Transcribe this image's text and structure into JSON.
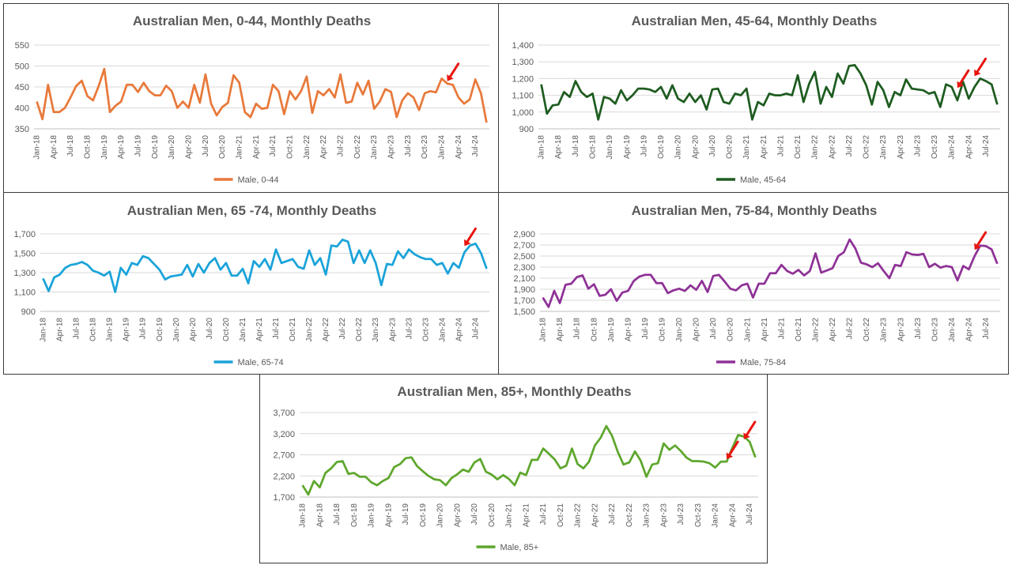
{
  "colors": {
    "arrow": "#e8150f",
    "text": "#595959",
    "grid": "#d9d9d9"
  },
  "chart_data": [
    {
      "type": "line",
      "title": "Australian Men, 0-44, Monthly Deaths",
      "legend": "bottom",
      "grid": true,
      "color": "#e8793b",
      "yticks": [
        350,
        400,
        450,
        500,
        550
      ],
      "ylim": [
        350,
        550
      ],
      "x_tick_labels": [
        "Jan-18",
        "Apr-18",
        "Jul-18",
        "Oct-18",
        "Jan-19",
        "Apr-19",
        "Jul-19",
        "Oct-19",
        "Jan-20",
        "Apr-20",
        "Jul-20",
        "Oct-20",
        "Jan-21",
        "Apr-21",
        "Jul-21",
        "Oct-21",
        "Jan-22",
        "Apr-22",
        "Jul-22",
        "Oct-22",
        "Jan-23",
        "Apr-23",
        "Jul-23",
        "Oct-23",
        "Jan-24",
        "Apr-24",
        "Jul-24"
      ],
      "series": [
        {
          "name": "Male, 0-44",
          "start": "Jan-18",
          "values": [
            415,
            373,
            455,
            390,
            390,
            400,
            425,
            452,
            465,
            428,
            418,
            452,
            493,
            390,
            405,
            415,
            455,
            455,
            438,
            460,
            440,
            430,
            430,
            453,
            440,
            400,
            415,
            400,
            455,
            412,
            480,
            410,
            382,
            402,
            412,
            478,
            460,
            390,
            378,
            410,
            398,
            400,
            455,
            440,
            385,
            440,
            420,
            440,
            475,
            388,
            440,
            430,
            445,
            425,
            480,
            412,
            415,
            460,
            432,
            465,
            398,
            415,
            445,
            438,
            378,
            418,
            435,
            425,
            395,
            435,
            440,
            437,
            470,
            458,
            455,
            425,
            410,
            420,
            468,
            435,
            365
          ]
        }
      ],
      "arrows": [
        {
          "x": "Feb-24",
          "y": 458
        }
      ]
    },
    {
      "type": "line",
      "title": "Australian Men, 45-64, Monthly Deaths",
      "legend": "bottom",
      "grid": true,
      "color": "#1e5c20",
      "yticks": [
        900,
        1000,
        1100,
        1200,
        1300,
        1400
      ],
      "ytick_labels": [
        "900",
        "1,000",
        "1,100",
        "1,200",
        "1,300",
        "1,400"
      ],
      "ylim": [
        900,
        1400
      ],
      "x_tick_labels": [
        "Jan-18",
        "Apr-18",
        "Jul-18",
        "Oct-18",
        "Jan-19",
        "Apr-19",
        "Jul-19",
        "Oct-19",
        "Jan-20",
        "Apr-20",
        "Jul-20",
        "Oct-20",
        "Jan-21",
        "Apr-21",
        "Jul-21",
        "Oct-21",
        "Jan-22",
        "Apr-22",
        "Jul-22",
        "Oct-22",
        "Jan-23",
        "Apr-23",
        "Jul-23",
        "Oct-23",
        "Jan-24",
        "Apr-24",
        "Jul-24"
      ],
      "series": [
        {
          "name": "Male, 45-64",
          "start": "Jan-18",
          "values": [
            1165,
            990,
            1040,
            1045,
            1120,
            1090,
            1185,
            1120,
            1090,
            1110,
            955,
            1090,
            1080,
            1050,
            1130,
            1070,
            1100,
            1140,
            1140,
            1135,
            1120,
            1150,
            1080,
            1160,
            1080,
            1060,
            1110,
            1060,
            1100,
            1015,
            1135,
            1140,
            1060,
            1050,
            1110,
            1100,
            1140,
            955,
            1060,
            1040,
            1110,
            1100,
            1100,
            1110,
            1100,
            1220,
            1060,
            1170,
            1240,
            1050,
            1150,
            1090,
            1230,
            1170,
            1275,
            1280,
            1230,
            1160,
            1045,
            1180,
            1130,
            1030,
            1120,
            1100,
            1195,
            1140,
            1135,
            1130,
            1110,
            1120,
            1030,
            1165,
            1150,
            1070,
            1180,
            1080,
            1150,
            1200,
            1185,
            1165,
            1045
          ]
        }
      ],
      "arrows": [
        {
          "x": "Feb-24",
          "y": 1130
        },
        {
          "x": "May-24",
          "y": 1200
        }
      ]
    },
    {
      "type": "line",
      "title": "Australian Men, 65 -74, Monthly Deaths",
      "legend": "bottom",
      "grid": true,
      "color": "#1aa3d9",
      "yticks": [
        900,
        1100,
        1300,
        1500,
        1700
      ],
      "ytick_labels": [
        "900",
        "1,100",
        "1,300",
        "1,500",
        "1,700"
      ],
      "ylim": [
        900,
        1700
      ],
      "x_tick_labels": [
        "Jan-18",
        "Apr-18",
        "Jul-18",
        "Oct-18",
        "Jan-19",
        "Apr-19",
        "Jul-19",
        "Oct-19",
        "Jan-20",
        "Apr-20",
        "Jul-20",
        "Oct-20",
        "Jan-21",
        "Apr-21",
        "Jul-21",
        "Oct-21",
        "Jan-22",
        "Apr-22",
        "Jul-22",
        "Oct-22",
        "Jan-23",
        "Apr-23",
        "Jul-23",
        "Oct-23",
        "Jan-24",
        "Apr-24",
        "Jul-24"
      ],
      "series": [
        {
          "name": "Male, 65-74",
          "start": "Jan-18",
          "values": [
            1240,
            1110,
            1250,
            1280,
            1350,
            1380,
            1390,
            1410,
            1380,
            1320,
            1300,
            1270,
            1310,
            1100,
            1350,
            1280,
            1400,
            1380,
            1470,
            1450,
            1390,
            1330,
            1230,
            1260,
            1270,
            1280,
            1380,
            1260,
            1390,
            1300,
            1400,
            1450,
            1330,
            1400,
            1270,
            1270,
            1340,
            1190,
            1420,
            1360,
            1440,
            1330,
            1540,
            1400,
            1420,
            1440,
            1360,
            1340,
            1530,
            1380,
            1450,
            1280,
            1580,
            1570,
            1640,
            1620,
            1400,
            1530,
            1400,
            1530,
            1400,
            1170,
            1390,
            1380,
            1520,
            1450,
            1540,
            1490,
            1460,
            1440,
            1440,
            1380,
            1400,
            1290,
            1400,
            1350,
            1510,
            1580,
            1600,
            1500,
            1340
          ]
        }
      ],
      "arrows": [
        {
          "x": "May-24",
          "y": 1550
        }
      ]
    },
    {
      "type": "line",
      "title": "Australian Men, 75-84, Monthly Deaths",
      "legend": "bottom",
      "grid": true,
      "color": "#8e3296",
      "yticks": [
        1500,
        1700,
        1900,
        2100,
        2300,
        2500,
        2700,
        2900
      ],
      "ytick_labels": [
        "1,500",
        "1,700",
        "1,900",
        "2,100",
        "2,300",
        "2,500",
        "2,700",
        "2,900"
      ],
      "ylim": [
        1500,
        2900
      ],
      "x_tick_labels": [
        "Jan-18",
        "Apr-18",
        "Jul-18",
        "Oct-18",
        "Jan-19",
        "Apr-19",
        "Jul-19",
        "Oct-19",
        "Jan-20",
        "Apr-20",
        "Jul-20",
        "Oct-20",
        "Jan-21",
        "Apr-21",
        "Jul-21",
        "Oct-21",
        "Jan-22",
        "Apr-22",
        "Jul-22",
        "Oct-22",
        "Jan-23",
        "Apr-23",
        "Jul-23",
        "Oct-23",
        "Jan-24",
        "Apr-24",
        "Jul-24"
      ],
      "series": [
        {
          "name": "Male, 75-84",
          "start": "Jan-18",
          "values": [
            1750,
            1580,
            1870,
            1650,
            1980,
            2000,
            2120,
            2150,
            1910,
            1990,
            1780,
            1800,
            1900,
            1690,
            1840,
            1870,
            2050,
            2130,
            2160,
            2160,
            2010,
            2010,
            1830,
            1880,
            1910,
            1870,
            1970,
            1890,
            2050,
            1850,
            2140,
            2160,
            2040,
            1910,
            1880,
            1970,
            2000,
            1750,
            2000,
            2000,
            2190,
            2190,
            2340,
            2230,
            2180,
            2250,
            2150,
            2230,
            2550,
            2200,
            2240,
            2280,
            2500,
            2570,
            2800,
            2640,
            2380,
            2350,
            2300,
            2370,
            2230,
            2100,
            2340,
            2320,
            2570,
            2530,
            2520,
            2540,
            2300,
            2360,
            2290,
            2320,
            2300,
            2060,
            2320,
            2260,
            2500,
            2690,
            2680,
            2620,
            2360
          ]
        }
      ],
      "arrows": [
        {
          "x": "May-24",
          "y": 2570
        }
      ]
    },
    {
      "type": "line",
      "title": "Australian Men, 85+, Monthly Deaths",
      "legend": "bottom",
      "grid": true,
      "color": "#5ea72d",
      "yticks": [
        1700,
        2200,
        2700,
        3200,
        3700
      ],
      "ytick_labels": [
        "1,700",
        "2,200",
        "2,700",
        "3,200",
        "3,700"
      ],
      "ylim": [
        1700,
        3700
      ],
      "x_tick_labels": [
        "Jan-18",
        "Apr-18",
        "Jul-18",
        "Oct-18",
        "Jan-19",
        "Apr-19",
        "Jul-19",
        "Oct-19",
        "Jan-20",
        "Apr-20",
        "Jul-20",
        "Oct-20",
        "Jan-21",
        "Apr-21",
        "Jul-21",
        "Oct-21",
        "Jan-22",
        "Apr-22",
        "Jul-22",
        "Oct-22",
        "Jan-23",
        "Apr-23",
        "Jul-23",
        "Oct-23",
        "Jan-24",
        "Apr-24",
        "Jul-24"
      ],
      "series": [
        {
          "name": "Male, 85+",
          "start": "Jan-18",
          "values": [
            1980,
            1760,
            2080,
            1930,
            2270,
            2380,
            2530,
            2550,
            2250,
            2270,
            2180,
            2180,
            2050,
            1980,
            2080,
            2150,
            2410,
            2480,
            2620,
            2640,
            2430,
            2310,
            2200,
            2120,
            2100,
            1980,
            2150,
            2240,
            2350,
            2300,
            2520,
            2600,
            2300,
            2230,
            2120,
            2220,
            2130,
            1980,
            2280,
            2220,
            2580,
            2580,
            2850,
            2720,
            2590,
            2380,
            2440,
            2850,
            2480,
            2380,
            2540,
            2920,
            3100,
            3380,
            3150,
            2770,
            2470,
            2520,
            2780,
            2560,
            2180,
            2470,
            2500,
            2970,
            2820,
            2920,
            2790,
            2630,
            2550,
            2550,
            2540,
            2500,
            2400,
            2540,
            2540,
            2870,
            3170,
            3130,
            3010,
            2640
          ]
        }
      ],
      "arrows": [
        {
          "x": "Mar-24",
          "y": 2540
        },
        {
          "x": "Jun-24",
          "y": 3010
        }
      ]
    }
  ]
}
